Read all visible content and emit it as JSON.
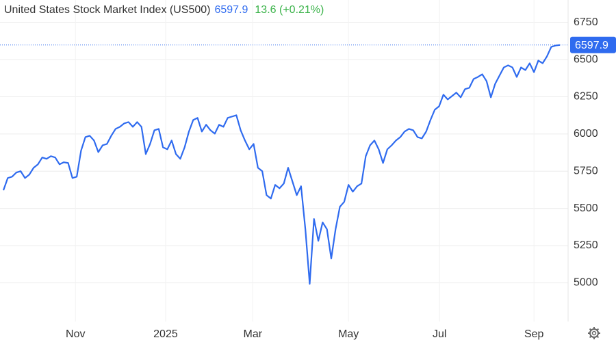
{
  "chart_data": {
    "type": "line",
    "title": "United States Stock Market Index (US500)",
    "subtitle": "13.6 (+0.21%)",
    "xlim": [
      0,
      129
    ],
    "xticks": [
      {
        "value": 16.7,
        "label": "Nov"
      },
      {
        "value": 37.6,
        "label": "2025"
      },
      {
        "value": 57.8,
        "label": "Mar"
      },
      {
        "value": 80,
        "label": "May"
      },
      {
        "value": 101.1,
        "label": "Jul"
      },
      {
        "value": 123,
        "label": "Sep"
      }
    ],
    "ylim": [
      4740,
      6900
    ],
    "yticks": [
      5000,
      5250,
      5500,
      5750,
      6000,
      6250,
      6500,
      6750
    ],
    "grid": true,
    "series": [
      {
        "color": "#2f6bef",
        "values": [
          5622,
          5704,
          5713,
          5741,
          5750,
          5704,
          5727,
          5773,
          5796,
          5842,
          5833,
          5851,
          5842,
          5796,
          5810,
          5805,
          5704,
          5713,
          5888,
          5979,
          5988,
          5956,
          5878,
          5924,
          5933,
          5988,
          6034,
          6048,
          6071,
          6080,
          6048,
          6080,
          6048,
          5865,
          5933,
          6025,
          6034,
          5910,
          5897,
          5956,
          5865,
          5833,
          5910,
          6016,
          6094,
          6108,
          6016,
          6062,
          6025,
          6002,
          6062,
          6048,
          6108,
          6117,
          6126,
          6025,
          5956,
          5897,
          5933,
          5773,
          5750,
          5589,
          5566,
          5658,
          5635,
          5667,
          5773,
          5681,
          5589,
          5649,
          5360,
          4993,
          5429,
          5282,
          5406,
          5360,
          5163,
          5360,
          5511,
          5544,
          5658,
          5612,
          5649,
          5667,
          5851,
          5924,
          5956,
          5897,
          5805,
          5897,
          5924,
          5956,
          5979,
          6016,
          6034,
          6025,
          5979,
          5970,
          6016,
          6094,
          6163,
          6186,
          6264,
          6232,
          6255,
          6278,
          6246,
          6301,
          6310,
          6369,
          6383,
          6401,
          6355,
          6246,
          6337,
          6392,
          6447,
          6461,
          6447,
          6383,
          6447,
          6429,
          6475,
          6415,
          6493,
          6475,
          6521,
          6585,
          6594,
          6597.9
        ]
      }
    ]
  }
}
